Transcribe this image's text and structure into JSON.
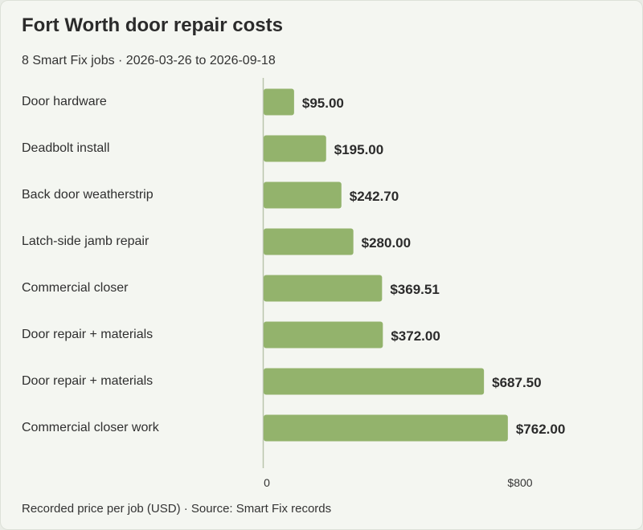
{
  "chart_data": {
    "type": "bar",
    "orientation": "horizontal",
    "title": "Fort Worth door repair costs",
    "subtitle": "8 Smart Fix jobs · 2026-03-26 to 2026-09-18",
    "categories": [
      "Door hardware",
      "Deadbolt install",
      "Back door weatherstrip",
      "Latch-side jamb repair",
      "Commercial closer",
      "Door repair + materials",
      "Door repair + materials",
      "Commercial closer work"
    ],
    "values": [
      95.0,
      195.0,
      242.7,
      280.0,
      369.51,
      372.0,
      687.5,
      762.0
    ],
    "value_labels": [
      "$95.00",
      "$195.00",
      "$242.70",
      "$280.00",
      "$369.51",
      "$372.00",
      "$687.50",
      "$762.00"
    ],
    "xlim": [
      0,
      800
    ],
    "x_ticks": [
      {
        "value": 0,
        "label": "0"
      },
      {
        "value": 800,
        "label": "$800"
      }
    ],
    "xlabel": "",
    "ylabel": "",
    "grid": false,
    "legend": "none",
    "bar_color": "#93b36c",
    "axis_color": "#b9c4ad",
    "footer": "Recorded price per job (USD) · Source: Smart Fix records"
  }
}
